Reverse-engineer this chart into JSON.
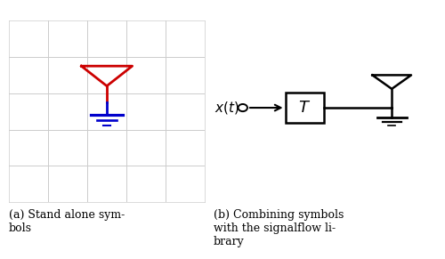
{
  "fig_width": 5.0,
  "fig_height": 2.91,
  "dpi": 100,
  "bg_color": "#ffffff",
  "grid_color": "#cccccc",
  "panel_a": {
    "antenna_color": "#cc0000",
    "ground_color": "#0000cc",
    "label_a": "(a) Stand alone sym-\nbols"
  },
  "panel_b": {
    "label_b": "(b) Combining symbols\nwith the signalflow li-\nbrary"
  }
}
